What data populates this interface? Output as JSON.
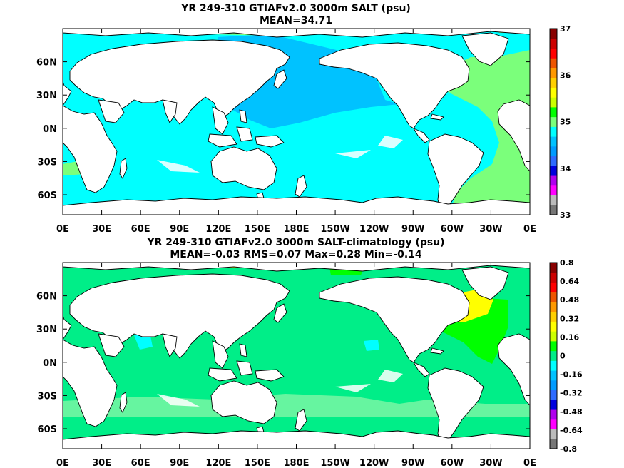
{
  "chart_data": [
    {
      "type": "heatmap",
      "title": "YR 249-310 GTIAFv2.0 3000m SALT (psu)",
      "subtitle": "MEAN=34.71",
      "x_tick_labels": [
        "0E",
        "30E",
        "60E",
        "90E",
        "120E",
        "150E",
        "180E",
        "150W",
        "120W",
        "90W",
        "60W",
        "30W",
        "0E"
      ],
      "y_tick_labels": [
        "60N",
        "30N",
        "0N",
        "30S",
        "60S"
      ],
      "xlim": [
        0,
        360
      ],
      "ylim": [
        -78,
        90
      ],
      "colorbar": {
        "levels": [
          33,
          33.25,
          33.5,
          33.75,
          34,
          34.25,
          34.5,
          34.75,
          35,
          35.25,
          35.5,
          35.75,
          36,
          36.25,
          36.5,
          36.75,
          37
        ],
        "colors": [
          "#777777",
          "#bbbbbb",
          "#ff00ff",
          "#b000ee",
          "#0000dd",
          "#2e6bff",
          "#009bff",
          "#00c2ff",
          "#00ffff",
          "#7bff7b",
          "#00ff00",
          "#ccff00",
          "#ffff00",
          "#ffd000",
          "#ff9900",
          "#ee5500",
          "#ff0000",
          "#cc0000",
          "#880000"
        ],
        "labels": [
          "37",
          "36",
          "35",
          "34",
          "33"
        ]
      },
      "regions": [
        {
          "value": 34.7,
          "color": "#00c2ff",
          "desc": "North and central Pacific"
        },
        {
          "value": 34.85,
          "color": "#00ffff",
          "desc": "South Pacific and Indian Ocean"
        },
        {
          "value": 35.0,
          "color": "#7bff7b",
          "desc": "Atlantic"
        }
      ]
    },
    {
      "type": "heatmap",
      "title": "YR 249-310 GTIAFv2.0 3000m SALT-climatology (psu)",
      "subtitle": "MEAN=-0.03   RMS=0.07   Max=0.28   Min=-0.14",
      "x_tick_labels": [
        "0E",
        "30E",
        "60E",
        "90E",
        "120E",
        "150E",
        "180E",
        "150W",
        "120W",
        "90W",
        "60W",
        "30W",
        "0E"
      ],
      "y_tick_labels": [
        "60N",
        "30N",
        "0N",
        "30S",
        "60S"
      ],
      "xlim": [
        0,
        360
      ],
      "ylim": [
        -78,
        90
      ],
      "stats": {
        "mean": -0.03,
        "rms": 0.07,
        "max": 0.28,
        "min": -0.14
      },
      "colorbar": {
        "levels": [
          -0.8,
          -0.72,
          -0.64,
          -0.56,
          -0.48,
          -0.4,
          -0.32,
          -0.24,
          -0.16,
          -0.08,
          0,
          0.08,
          0.16,
          0.24,
          0.32,
          0.4,
          0.48,
          0.56,
          0.64,
          0.72,
          0.8
        ],
        "colors": [
          "#777777",
          "#bbbbbb",
          "#ff00ff",
          "#b000ee",
          "#0000dd",
          "#2e6bff",
          "#009bff",
          "#00c2ff",
          "#00ffff",
          "#00ee88",
          "#00ff00",
          "#ccff00",
          "#ffff00",
          "#ffd000",
          "#ff9900",
          "#ee5500",
          "#ff0000",
          "#cc0000",
          "#880000"
        ],
        "labels": [
          "0.8",
          "0.64",
          "0.48",
          "0.32",
          "0.16",
          "0",
          "-0.16",
          "-0.32",
          "-0.48",
          "-0.64",
          "-0.8"
        ]
      },
      "regions": [
        {
          "value": -0.03,
          "color": "#00ee88",
          "desc": "Most of the ocean"
        },
        {
          "value": 0.12,
          "color": "#00ff00",
          "desc": "North Atlantic subtropics"
        },
        {
          "value": 0.25,
          "color": "#ffff00",
          "desc": "North Atlantic near Newfoundland"
        },
        {
          "value": -0.1,
          "color": "#00ffff",
          "desc": "Scattered Indian Ocean patches"
        }
      ]
    }
  ]
}
